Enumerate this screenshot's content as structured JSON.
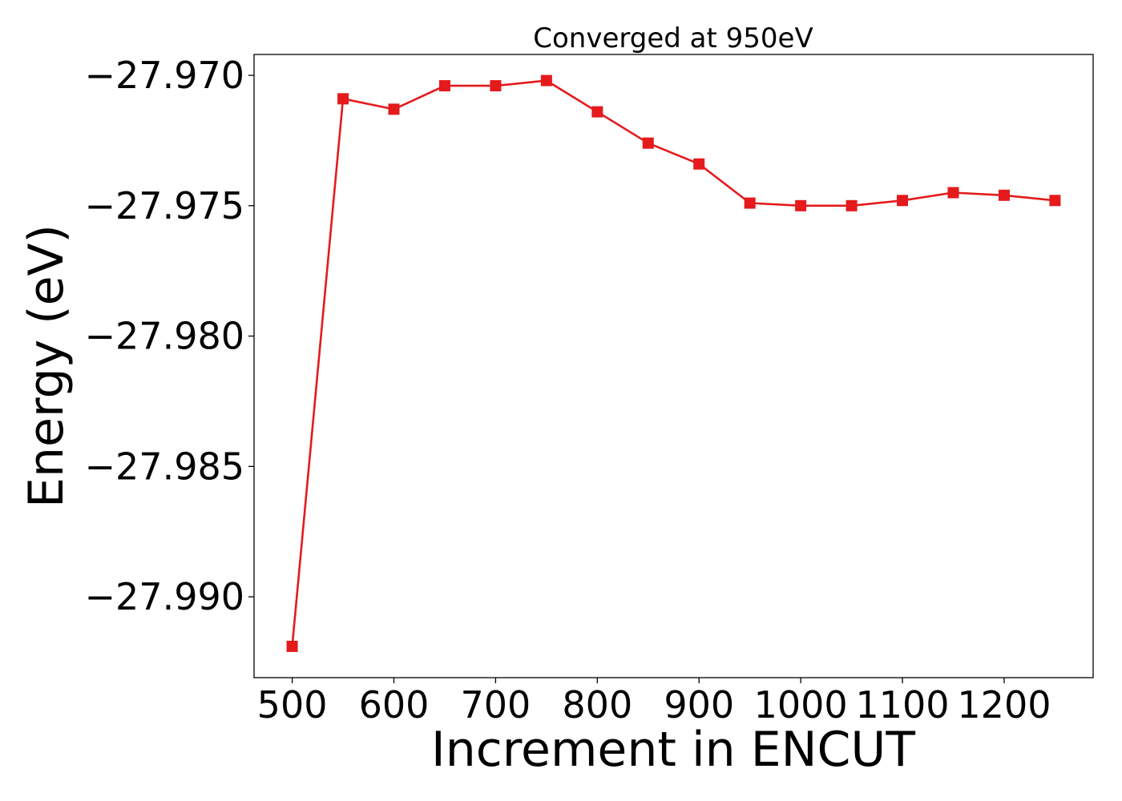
{
  "chart_data": {
    "type": "line",
    "title": "Converged at 950eV",
    "xlabel": "Increment in ENCUT",
    "ylabel": "Energy (eV)",
    "xlim": [
      462.5,
      1287.5
    ],
    "ylim": [
      -27.9931,
      -27.9692
    ],
    "xticks": [
      500,
      600,
      700,
      800,
      900,
      1000,
      1100,
      1200
    ],
    "xtick_labels": [
      "500",
      "600",
      "700",
      "800",
      "900",
      "1000",
      "1100",
      "1200"
    ],
    "yticks": [
      -27.97,
      -27.975,
      -27.98,
      -27.985,
      -27.99
    ],
    "ytick_labels": [
      "−27.970",
      "−27.975",
      "−27.980",
      "−27.985",
      "−27.990"
    ],
    "grid": false,
    "series": [
      {
        "color": "#e41a1c",
        "marker": "square",
        "x": [
          500,
          550,
          600,
          650,
          700,
          750,
          800,
          850,
          900,
          950,
          1000,
          1050,
          1100,
          1150,
          1200,
          1250
        ],
        "y": [
          -27.9919,
          -27.9709,
          -27.9713,
          -27.9704,
          -27.9704,
          -27.9702,
          -27.9714,
          -27.9726,
          -27.9734,
          -27.9749,
          -27.975,
          -27.975,
          -27.9748,
          -27.9745,
          -27.9746,
          -27.9748
        ]
      }
    ]
  }
}
